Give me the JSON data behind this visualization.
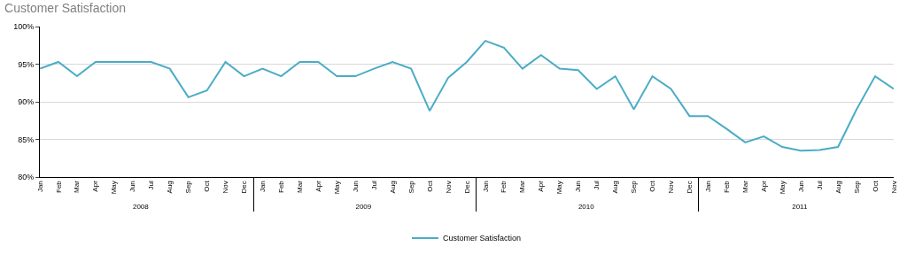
{
  "chart_data": {
    "type": "line",
    "title": "Customer Satisfaction",
    "categories": [
      "Jan",
      "Feb",
      "Mar",
      "Apr",
      "May",
      "Jun",
      "Jul",
      "Aug",
      "Sep",
      "Oct",
      "Nov",
      "Dec",
      "Jan",
      "Feb",
      "Mar",
      "Apr",
      "May",
      "Jun",
      "Jul",
      "Aug",
      "Sep",
      "Oct",
      "Nov",
      "Dec",
      "Jan",
      "Feb",
      "Mar",
      "Apr",
      "May",
      "Jun",
      "Jul",
      "Aug",
      "Sep",
      "Oct",
      "Nov",
      "Dec",
      "Jan",
      "Feb",
      "Mar",
      "Apr",
      "May",
      "Jun",
      "Jul",
      "Aug",
      "Sep",
      "Oct",
      "Nov"
    ],
    "annotations": [
      "2008",
      "2009",
      "2010",
      "2011"
    ],
    "series": [
      {
        "name": "Customer Satisfaction",
        "color": "#4bacc6",
        "values": [
          94.4,
          95.3,
          93.4,
          95.3,
          95.3,
          95.3,
          95.3,
          94.4,
          90.6,
          91.5,
          95.3,
          93.4,
          94.4,
          93.4,
          95.3,
          95.3,
          93.4,
          93.4,
          94.4,
          95.3,
          94.4,
          88.8,
          93.2,
          95.3,
          98.1,
          97.2,
          94.4,
          96.2,
          94.4,
          94.2,
          91.7,
          93.4,
          89.0,
          93.4,
          91.7,
          88.1,
          88.1,
          86.4,
          84.6,
          85.4,
          84.0,
          83.5,
          83.6,
          84.0,
          89.0,
          93.4,
          91.7
        ]
      }
    ],
    "ylim": [
      80,
      100
    ],
    "yticks": [
      {
        "value": 80,
        "label": "80%"
      },
      {
        "value": 85,
        "label": "85%"
      },
      {
        "value": 90,
        "label": "90%"
      },
      {
        "value": 95,
        "label": "95%"
      },
      {
        "value": 100,
        "label": "100%"
      }
    ],
    "grid": "y",
    "legend": "bottom",
    "marker": "none",
    "line_style": "solid"
  }
}
